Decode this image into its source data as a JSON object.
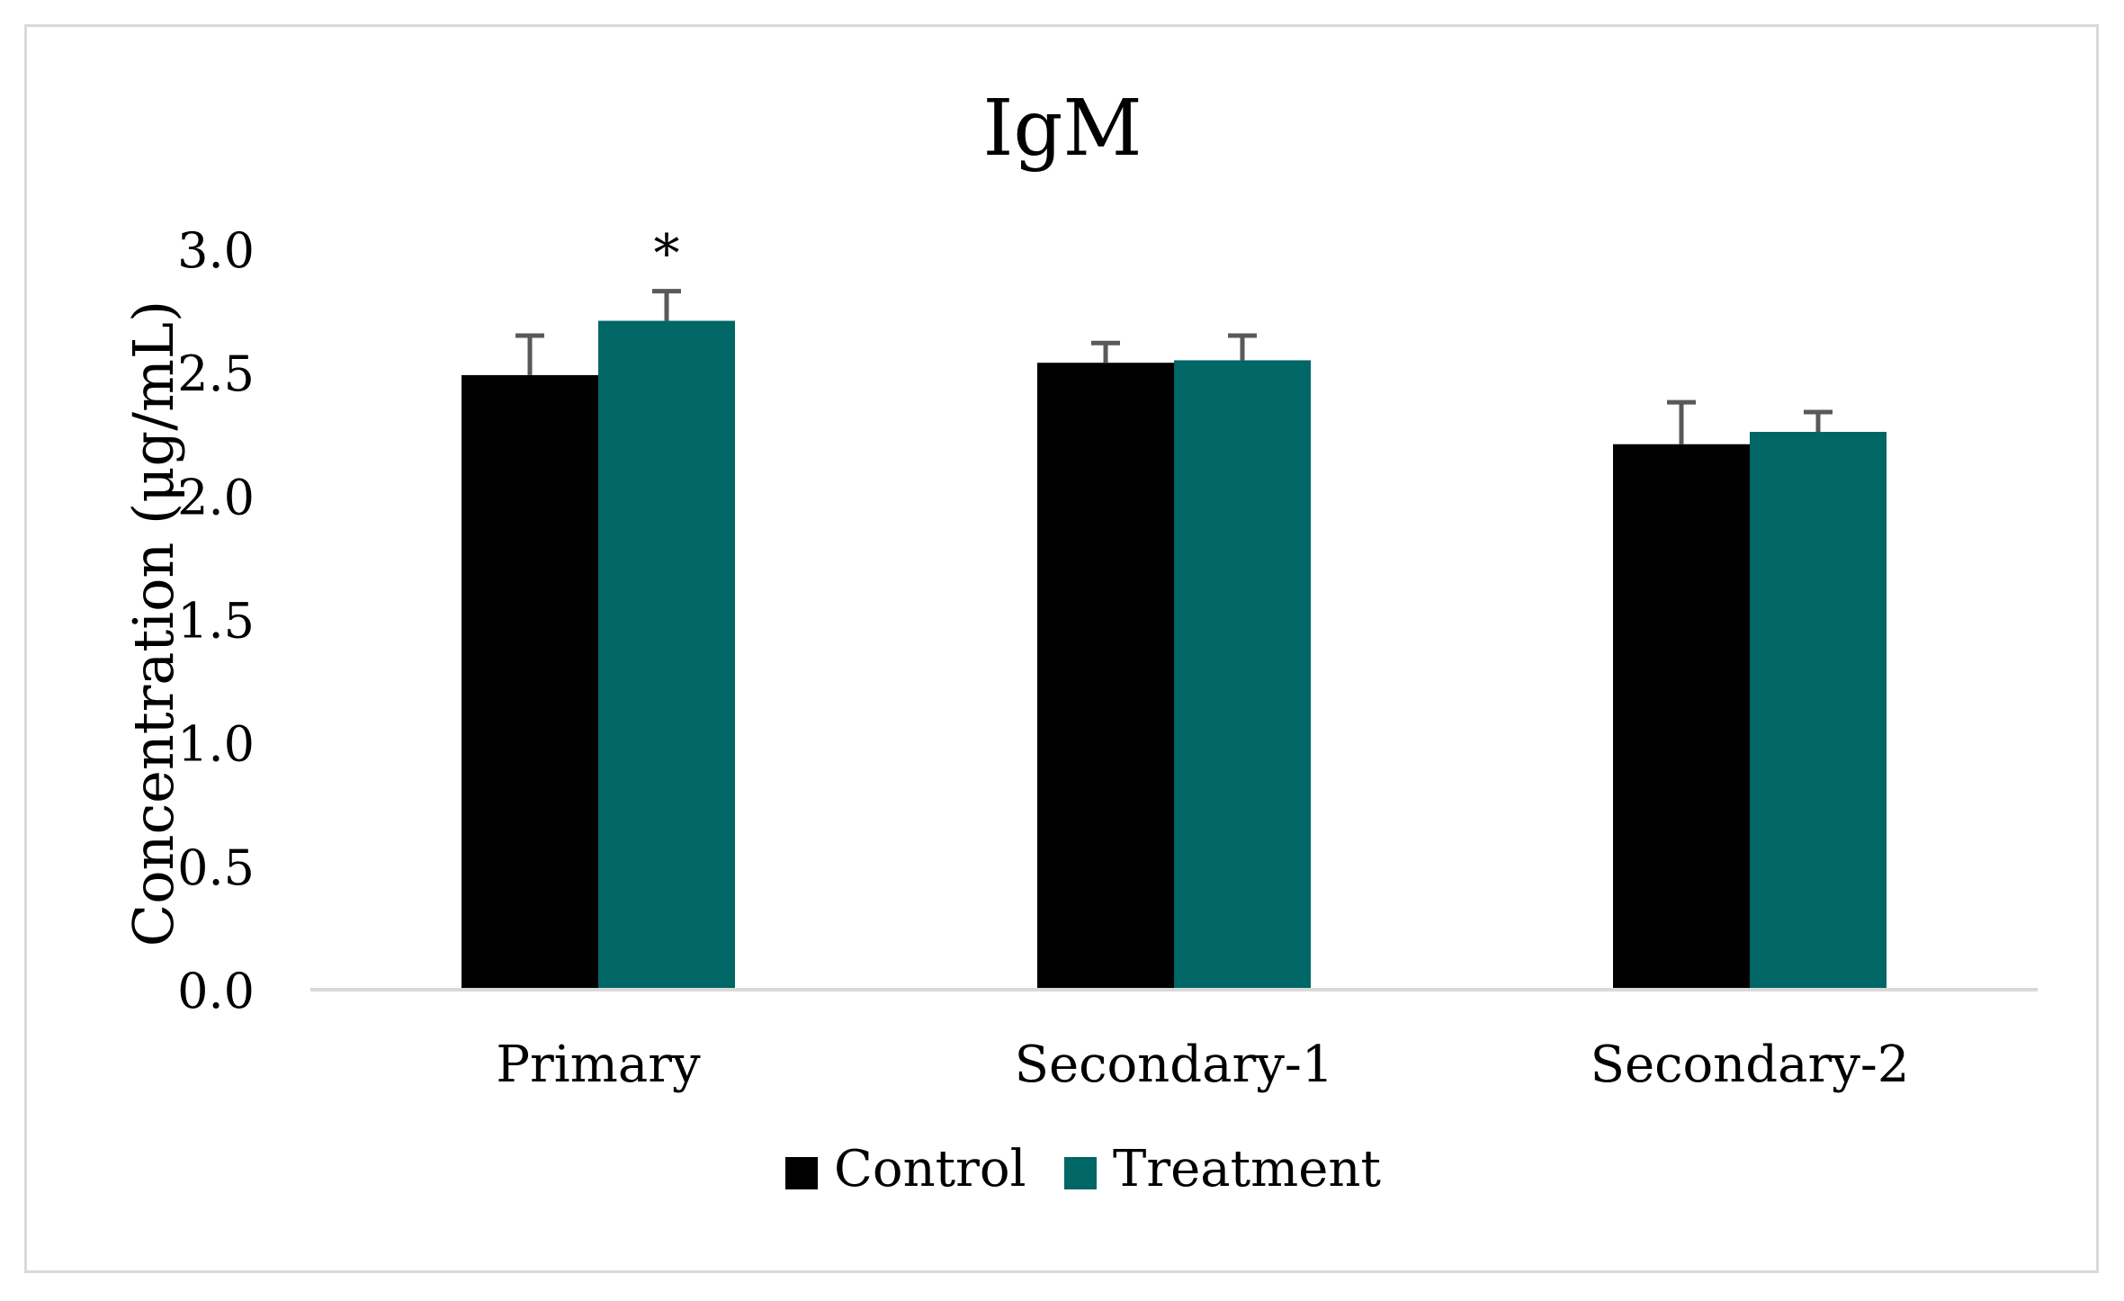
{
  "chart_data": {
    "type": "bar",
    "title": "IgM",
    "xlabel": "",
    "ylabel": "Concentration (μg/mL)",
    "ylim": [
      0,
      3.0
    ],
    "yticks": [
      0.0,
      0.5,
      1.0,
      1.5,
      2.0,
      2.5,
      3.0
    ],
    "ytick_labels": [
      "0.0",
      "0.5",
      "1.0",
      "1.5",
      "2.0",
      "2.5",
      "3.0"
    ],
    "grid": false,
    "legend_position": "bottom-center",
    "categories": [
      "Primary",
      "Secondary-1",
      "Secondary-2"
    ],
    "series": [
      {
        "name": "Control",
        "color": "#000000",
        "values": [
          2.49,
          2.54,
          2.21
        ],
        "errors": [
          0.16,
          0.08,
          0.17
        ]
      },
      {
        "name": "Treatment",
        "color": "#006666",
        "values": [
          2.71,
          2.55,
          2.26
        ],
        "errors": [
          0.12,
          0.1,
          0.08
        ]
      }
    ],
    "annotations": [
      {
        "text": "*",
        "category": "Primary",
        "series": "Treatment"
      }
    ]
  }
}
